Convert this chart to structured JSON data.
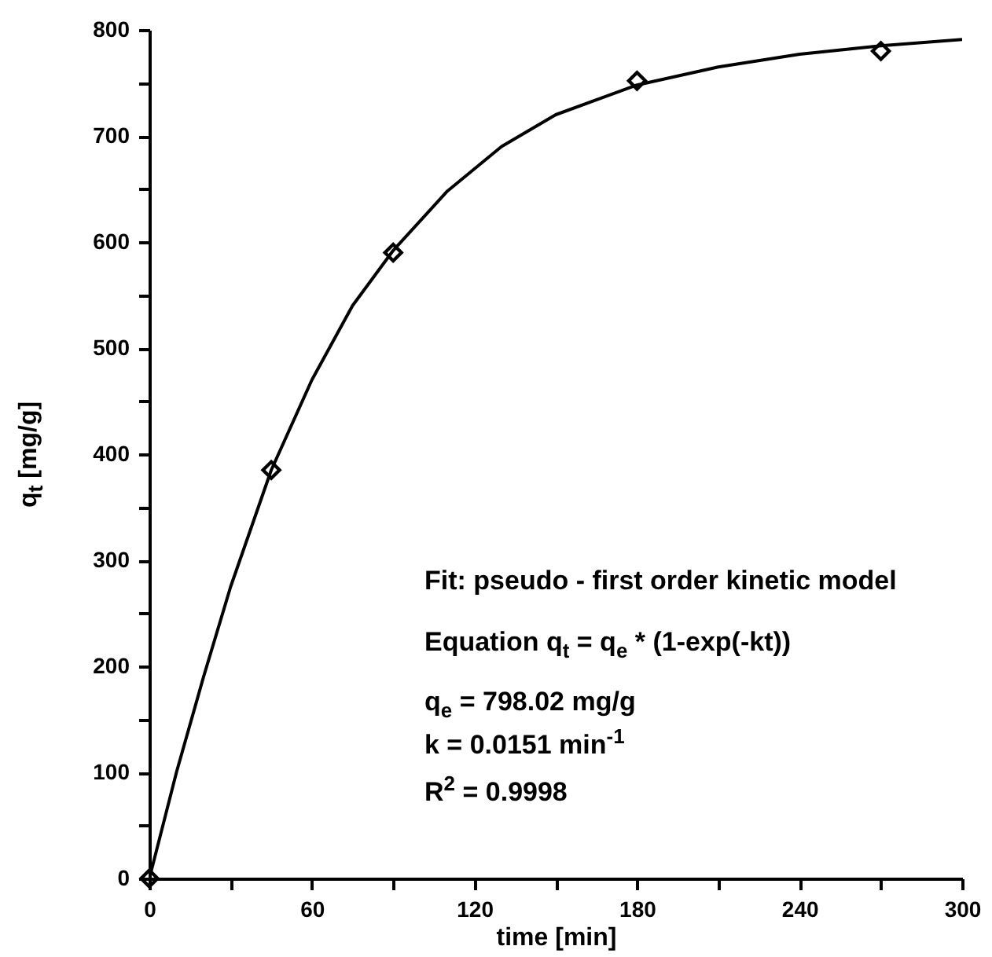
{
  "chart_data": {
    "type": "scatter",
    "xlabel": "time [min]",
    "ylabel": "q$_{t}$  [mg/g]",
    "annotations": [
      "Fit: pseudo - first order kinetic model",
      "Equation q$_{t}$ = q$_{e}$ * (1-exp(-kt))",
      "q$_{e}$ =  798.02 mg/g",
      "k =  0.0151 min$^{-1}$",
      "R$^{2}$  =  0.9998"
    ],
    "series": [
      {
        "type": "line",
        "color": "#000000",
        "marker": "none",
        "line_style": "solid",
        "x": [
          0,
          10,
          20,
          30,
          45,
          60,
          75,
          90,
          110,
          130,
          150,
          180,
          210,
          240,
          270,
          300
        ],
        "values": [
          0,
          100,
          190,
          275,
          385,
          470,
          540,
          592,
          648,
          690,
          720,
          748,
          765,
          777,
          785,
          791
        ]
      },
      {
        "type": "scatter",
        "color": "#000000",
        "marker": "diamond",
        "x": [
          0,
          45,
          90,
          180,
          270
        ],
        "values": [
          0,
          385,
          590,
          752,
          780
        ]
      }
    ],
    "xlim": [
      0,
      300
    ],
    "ylim": [
      0,
      800
    ],
    "xticks": [
      0,
      {
        "value": 30,
        "label": null
      },
      60,
      {
        "value": 90,
        "label": null
      },
      120,
      {
        "value": 150,
        "label": null
      },
      180,
      {
        "value": 210,
        "label": null
      },
      240,
      {
        "value": 270,
        "label": null
      },
      300
    ],
    "yticks": [
      0,
      {
        "value": 50,
        "label": null
      },
      100,
      {
        "value": 150,
        "label": null
      },
      200,
      {
        "value": 250,
        "label": null
      },
      300,
      {
        "value": 350,
        "label": null
      },
      400,
      {
        "value": 450,
        "label": null
      },
      500,
      {
        "value": 550,
        "label": null
      },
      600,
      {
        "value": 650,
        "label": null
      },
      700,
      {
        "value": 750,
        "label": null
      },
      800
    ],
    "grid": false
  }
}
